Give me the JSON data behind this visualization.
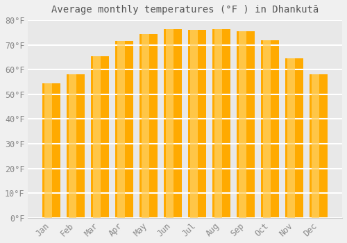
{
  "title": "Average monthly temperatures (°F ) in Dhankutā",
  "months": [
    "Jan",
    "Feb",
    "Mar",
    "Apr",
    "May",
    "Jun",
    "Jul",
    "Aug",
    "Sep",
    "Oct",
    "Nov",
    "Dec"
  ],
  "values": [
    54.5,
    58.0,
    65.5,
    71.5,
    74.5,
    76.5,
    76.0,
    76.5,
    75.5,
    72.0,
    64.5,
    58.0
  ],
  "bar_color_main": "#FFAA00",
  "bar_color_light": "#FFD060",
  "ylim": [
    0,
    80
  ],
  "yticks": [
    0,
    10,
    20,
    30,
    40,
    50,
    60,
    70,
    80
  ],
  "ytick_labels": [
    "0°F",
    "10°F",
    "20°F",
    "30°F",
    "40°F",
    "50°F",
    "60°F",
    "70°F",
    "80°F"
  ],
  "background_color": "#f0f0f0",
  "plot_bg_color": "#e8e8e8",
  "grid_color": "#ffffff",
  "title_fontsize": 10,
  "tick_fontsize": 8.5,
  "title_color": "#555555",
  "tick_color": "#888888"
}
